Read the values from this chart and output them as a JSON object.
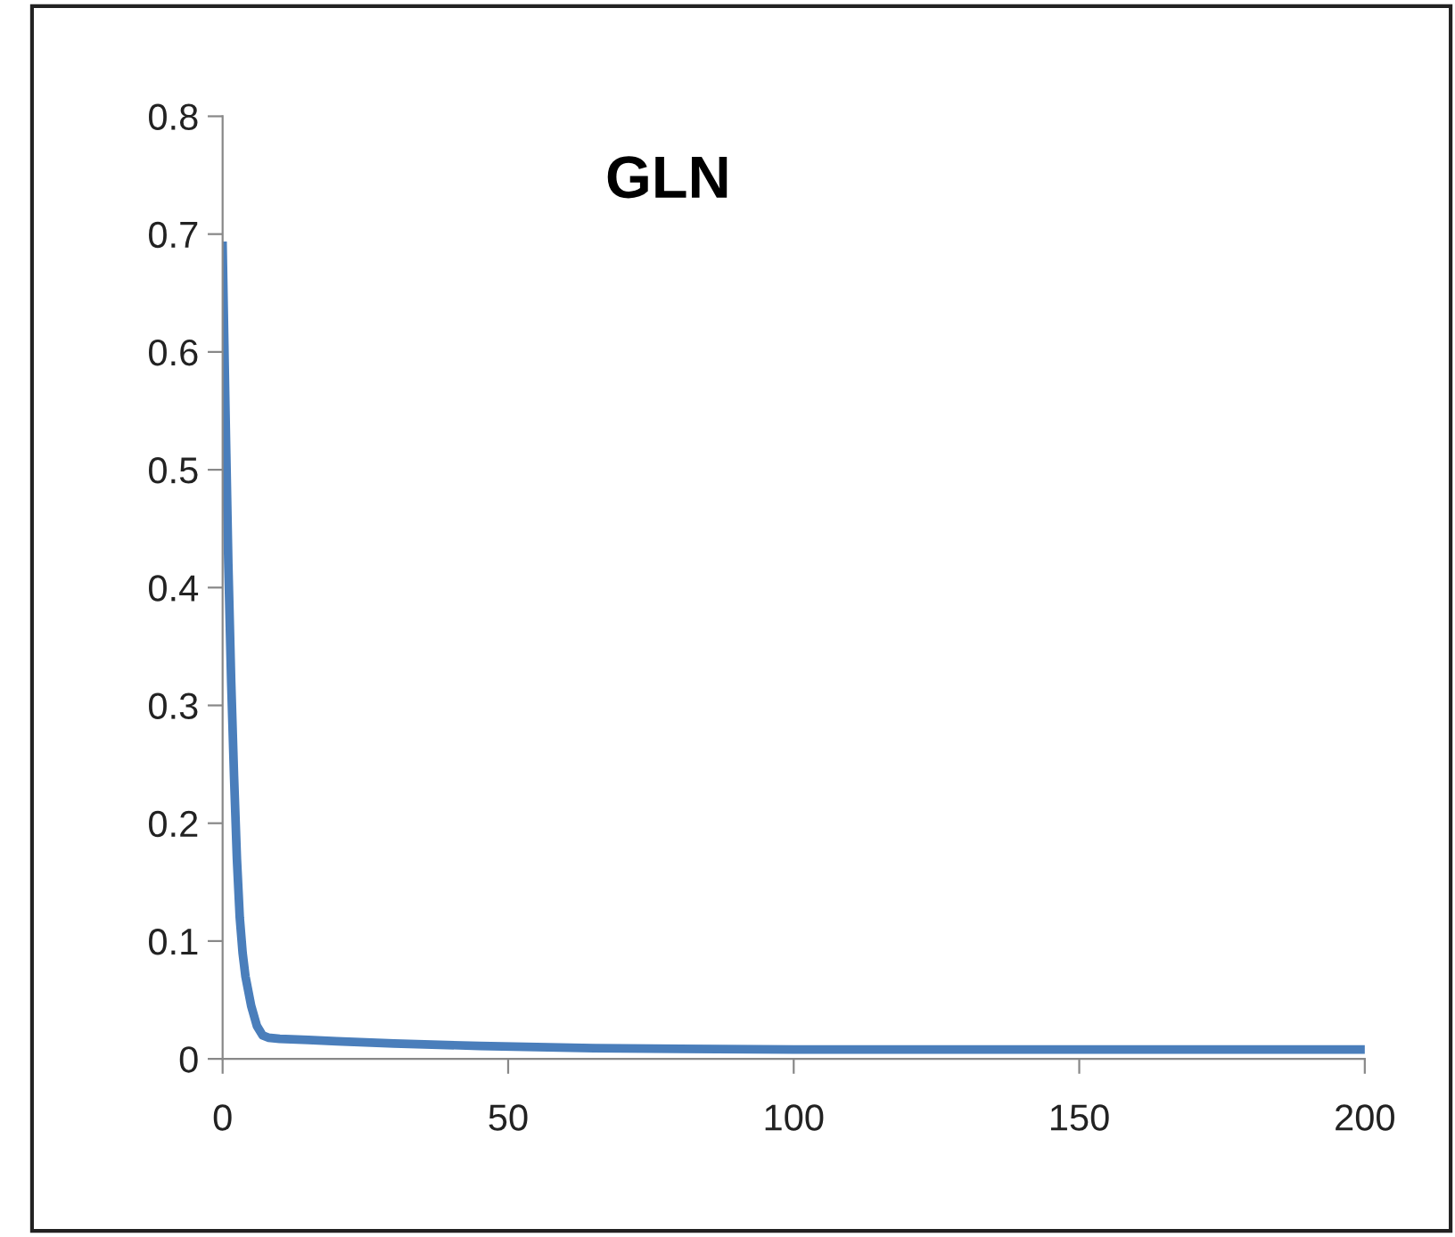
{
  "chart_data": {
    "type": "line",
    "title": "GLN",
    "x": [
      0,
      0.5,
      1,
      1.5,
      2,
      2.5,
      3,
      3.5,
      4,
      5,
      6,
      7,
      8,
      10,
      15,
      20,
      30,
      45,
      65,
      100,
      150,
      200
    ],
    "series": [
      {
        "color": "#4a7ebb",
        "values": [
          0.69,
          0.55,
          0.42,
          0.32,
          0.24,
          0.17,
          0.12,
          0.09,
          0.07,
          0.045,
          0.028,
          0.02,
          0.018,
          0.017,
          0.016,
          0.015,
          0.013,
          0.011,
          0.009,
          0.008,
          0.008,
          0.008
        ]
      }
    ],
    "xlim": [
      0,
      200
    ],
    "xticks": [
      0,
      50,
      100,
      150,
      200
    ],
    "ylim": [
      0,
      0.8
    ],
    "yticks": [
      0,
      0.1,
      0.2,
      0.3,
      0.4,
      0.5,
      0.6,
      0.7,
      0.8
    ],
    "grid": false,
    "marker": "none",
    "line_style": "solid"
  }
}
